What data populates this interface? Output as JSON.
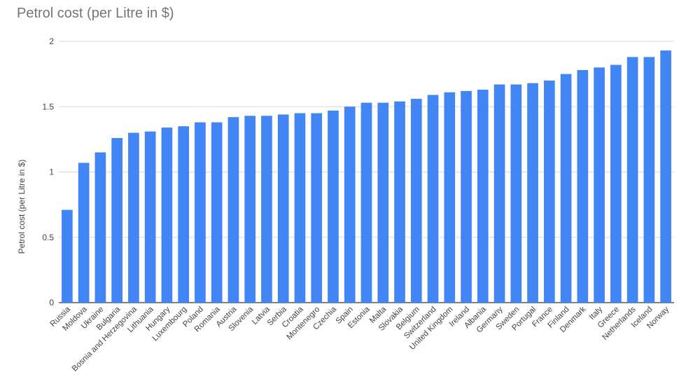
{
  "chart_data": {
    "type": "bar",
    "title": "Petrol cost (per Litre in $)",
    "xlabel": "",
    "ylabel": "Petrol cost (per Litre in $)",
    "ylim": [
      0,
      2
    ],
    "yticks": [
      "0",
      "0.5",
      "1",
      "1.5",
      "2"
    ],
    "grid": true,
    "legend": "none",
    "bar_color": "#4285f4",
    "categories": [
      "Russia",
      "Moldova",
      "Ukraine",
      "Bulgaria",
      "Bosnia and Herzegovina",
      "Lithuania",
      "Hungary",
      "Luxembourg",
      "Poland",
      "Romania",
      "Austria",
      "Slovenia",
      "Latvia",
      "Serbia",
      "Croatia",
      "Montenegro",
      "Czechia",
      "Spain",
      "Estonia",
      "Malta",
      "Slovakia",
      "Belgium",
      "Switzerland",
      "United Kingdom",
      "Ireland",
      "Albania",
      "Germany",
      "Sweden",
      "Portugal",
      "France",
      "Finland",
      "Denmark",
      "Italy",
      "Greece",
      "Netherlands",
      "Iceland",
      "Norway"
    ],
    "values": [
      0.71,
      1.07,
      1.15,
      1.26,
      1.3,
      1.31,
      1.34,
      1.35,
      1.38,
      1.38,
      1.42,
      1.43,
      1.43,
      1.44,
      1.45,
      1.45,
      1.47,
      1.5,
      1.53,
      1.53,
      1.54,
      1.56,
      1.59,
      1.61,
      1.62,
      1.63,
      1.67,
      1.67,
      1.68,
      1.7,
      1.75,
      1.78,
      1.8,
      1.82,
      1.88,
      1.88,
      1.93
    ]
  }
}
